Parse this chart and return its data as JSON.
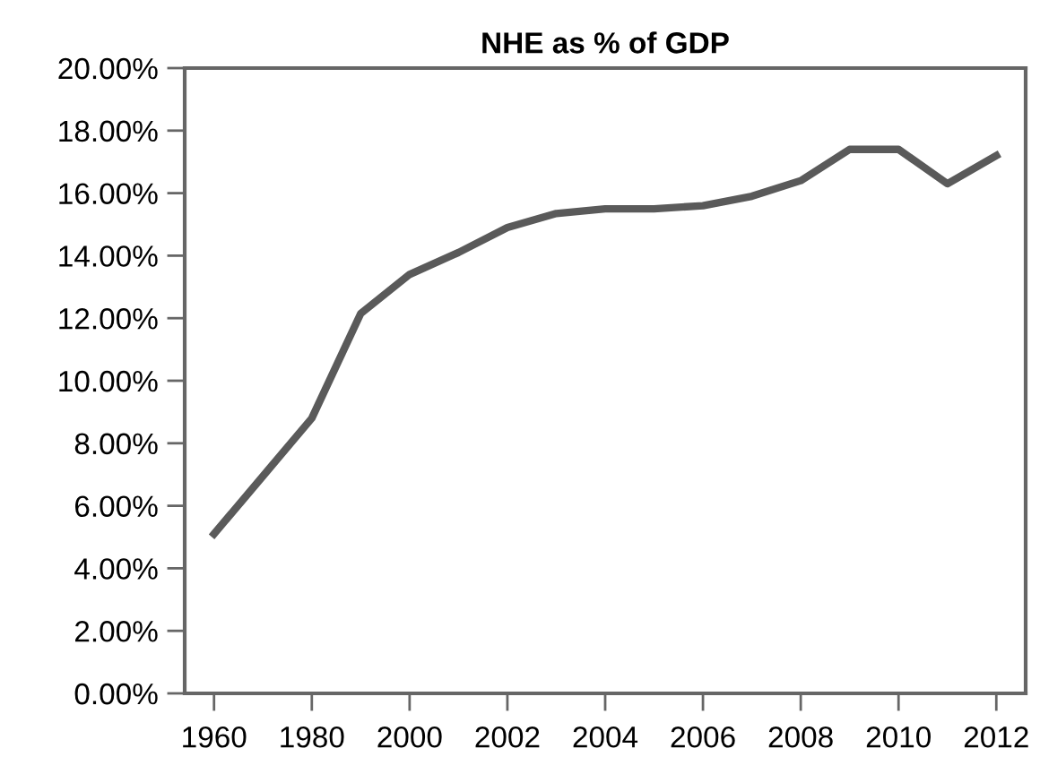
{
  "chart_data": {
    "type": "line",
    "title": "NHE as % of GDP",
    "categories": [
      "1960",
      null,
      "1980",
      null,
      "2000",
      null,
      "2002",
      null,
      "2004",
      null,
      "2006",
      null,
      "2008",
      null,
      "2010",
      null,
      "2012"
    ],
    "series": [
      {
        "color": "#5a5a5a",
        "values": [
          5.1,
          6.95,
          8.8,
          12.15,
          13.4,
          14.1,
          14.9,
          15.35,
          15.5,
          15.5,
          15.6,
          15.9,
          16.4,
          17.4,
          17.4,
          16.3,
          17.2
        ]
      }
    ],
    "ylim": [
      0,
      20
    ],
    "yticks": [
      {
        "value": 0,
        "label": "0.00%"
      },
      {
        "value": 2,
        "label": "2.00%"
      },
      {
        "value": 4,
        "label": "4.00%"
      },
      {
        "value": 6,
        "label": "6.00%"
      },
      {
        "value": 8,
        "label": "8.00%"
      },
      {
        "value": 10,
        "label": "10.00%"
      },
      {
        "value": 12,
        "label": "12.00%"
      },
      {
        "value": 14,
        "label": "14.00%"
      },
      {
        "value": 16,
        "label": "16.00%"
      },
      {
        "value": 18,
        "label": "18.00%"
      },
      {
        "value": 20,
        "label": "20.00%"
      }
    ],
    "grid": false,
    "legend": false,
    "marker": "none",
    "line_style": "solid"
  }
}
